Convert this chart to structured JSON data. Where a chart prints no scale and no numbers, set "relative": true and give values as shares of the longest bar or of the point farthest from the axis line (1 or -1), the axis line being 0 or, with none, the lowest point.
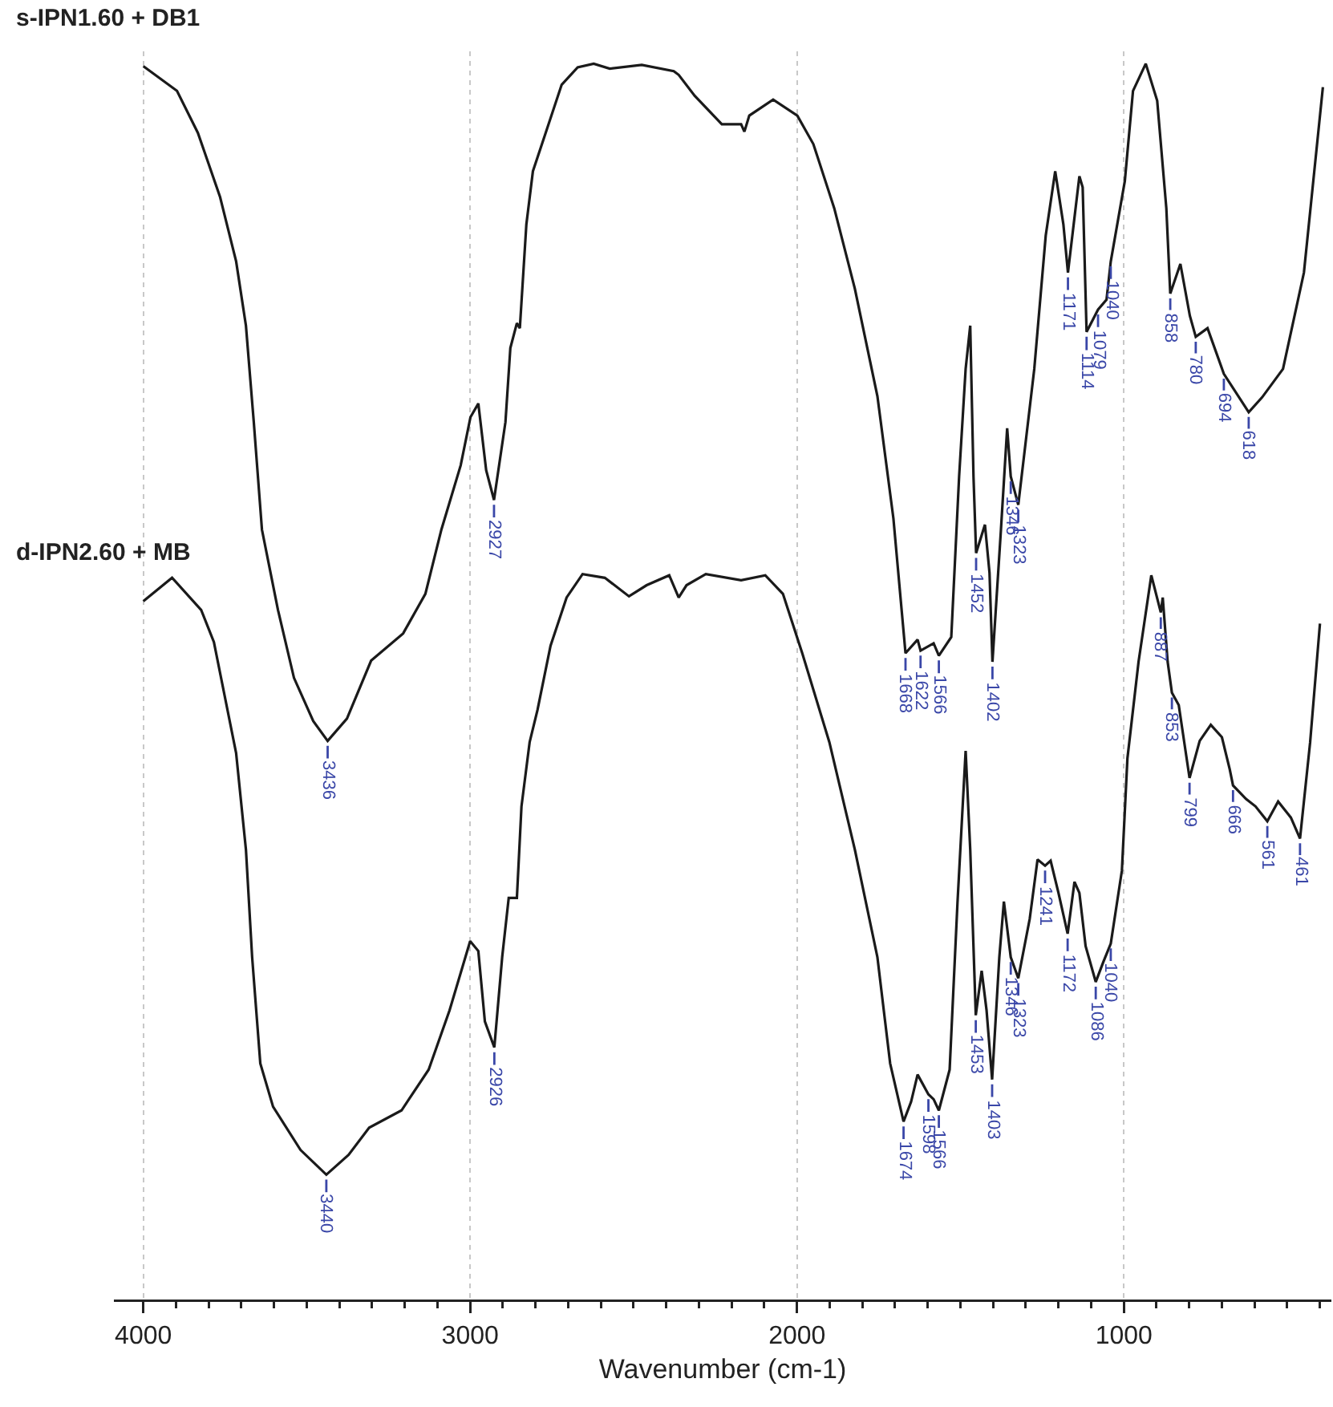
{
  "chart_data": {
    "type": "line",
    "relative": true,
    "xlabel": "Wavenumber (cm-1)",
    "xlim": [
      4090,
      365
    ],
    "xticks": [
      4000,
      {
        "value": 3900,
        "label": null
      },
      {
        "value": 3800,
        "label": null
      },
      {
        "value": 3700,
        "label": null
      },
      {
        "value": 3600,
        "label": null
      },
      {
        "value": 3500,
        "label": null
      },
      {
        "value": 3400,
        "label": null
      },
      {
        "value": 3300,
        "label": null
      },
      {
        "value": 3200,
        "label": null
      },
      {
        "value": 3100,
        "label": null
      },
      3000,
      {
        "value": 2900,
        "label": null
      },
      {
        "value": 2800,
        "label": null
      },
      {
        "value": 2700,
        "label": null
      },
      {
        "value": 2600,
        "label": null
      },
      {
        "value": 2500,
        "label": null
      },
      {
        "value": 2400,
        "label": null
      },
      {
        "value": 2300,
        "label": null
      },
      {
        "value": 2200,
        "label": null
      },
      {
        "value": 2100,
        "label": null
      },
      2000,
      {
        "value": 1900,
        "label": null
      },
      {
        "value": 1800,
        "label": null
      },
      {
        "value": 1700,
        "label": null
      },
      {
        "value": 1600,
        "label": null
      },
      {
        "value": 1500,
        "label": null
      },
      {
        "value": 1400,
        "label": null
      },
      {
        "value": 1300,
        "label": null
      },
      {
        "value": 1200,
        "label": null
      },
      {
        "value": 1100,
        "label": null
      },
      1000,
      {
        "value": 900,
        "label": null
      },
      {
        "value": 800,
        "label": null
      },
      {
        "value": 700,
        "label": null
      },
      {
        "value": 600,
        "label": null
      },
      {
        "value": 500,
        "label": null
      },
      {
        "value": 400,
        "label": null
      }
    ],
    "grid": "x",
    "legend": false,
    "marker": "none",
    "line_style": "solid",
    "tick_labels": "x",
    "series": [
      {
        "name": "s-IPN1.60 + DB1",
        "color": "#1a1a1a",
        "x": [
          4000,
          3897,
          3833,
          3765,
          3716,
          3686,
          3662,
          3637,
          3588,
          3539,
          3480,
          3436,
          3377,
          3303,
          3205,
          3137,
          3088,
          3029,
          2999,
          2975,
          2951,
          2927,
          2892,
          2877,
          2857,
          2848,
          2828,
          2808,
          2769,
          2720,
          2671,
          2622,
          2573,
          2475,
          2377,
          2362,
          2313,
          2230,
          2171,
          2161,
          2146,
          2073,
          1999,
          1950,
          1886,
          1823,
          1754,
          1705,
          1668,
          1631,
          1622,
          1582,
          1566,
          1528,
          1504,
          1484,
          1470,
          1460,
          1452,
          1425,
          1411,
          1402,
          1376,
          1357,
          1346,
          1323,
          1274,
          1239,
          1210,
          1185,
          1171,
          1136,
          1126,
          1114,
          1079,
          1053,
          1040,
          997,
          972,
          933,
          898,
          870,
          858,
          827,
          798,
          780,
          744,
          694,
          618,
          577,
          513,
          449,
          391
        ],
        "values": [
          0.998,
          0.978,
          0.944,
          0.892,
          0.84,
          0.788,
          0.71,
          0.623,
          0.558,
          0.503,
          0.468,
          0.452,
          0.47,
          0.517,
          0.539,
          0.571,
          0.623,
          0.675,
          0.714,
          0.725,
          0.671,
          0.647,
          0.71,
          0.77,
          0.79,
          0.786,
          0.87,
          0.913,
          0.944,
          0.983,
          0.997,
          1.0,
          0.996,
          0.999,
          0.994,
          0.991,
          0.974,
          0.951,
          0.951,
          0.945,
          0.958,
          0.971,
          0.958,
          0.935,
          0.883,
          0.818,
          0.731,
          0.632,
          0.523,
          0.534,
          0.525,
          0.531,
          0.521,
          0.536,
          0.666,
          0.753,
          0.788,
          0.666,
          0.604,
          0.627,
          0.588,
          0.516,
          0.623,
          0.705,
          0.666,
          0.643,
          0.753,
          0.861,
          0.913,
          0.87,
          0.831,
          0.909,
          0.9,
          0.783,
          0.801,
          0.809,
          0.84,
          0.905,
          0.978,
          1.0,
          0.97,
          0.883,
          0.814,
          0.838,
          0.796,
          0.779,
          0.786,
          0.749,
          0.718,
          0.73,
          0.753,
          0.831,
          0.981
        ]
      },
      {
        "name": "d-IPN2.60 + MB",
        "color": "#1a1a1a",
        "x": [
          4000,
          3912,
          3823,
          3784,
          3716,
          3686,
          3667,
          3642,
          3603,
          3519,
          3440,
          3372,
          3309,
          3210,
          3127,
          3063,
          3000,
          2975,
          2955,
          2926,
          2902,
          2882,
          2857,
          2843,
          2818,
          2794,
          2754,
          2705,
          2656,
          2588,
          2514,
          2460,
          2391,
          2362,
          2338,
          2279,
          2171,
          2097,
          2043,
          1984,
          1901,
          1823,
          1754,
          1715,
          1674,
          1651,
          1631,
          1598,
          1582,
          1566,
          1533,
          1509,
          1484,
          1470,
          1453,
          1435,
          1420,
          1403,
          1381,
          1367,
          1346,
          1323,
          1288,
          1264,
          1241,
          1224,
          1200,
          1172,
          1151,
          1136,
          1117,
          1086,
          1063,
          1040,
          1006,
          989,
          955,
          916,
          887,
          881,
          866,
          853,
          832,
          799,
          768,
          734,
          700,
          676,
          666,
          626,
          597,
          561,
          528,
          489,
          461,
          430,
          400
        ],
        "values": [
          0.565,
          0.584,
          0.558,
          0.532,
          0.442,
          0.364,
          0.277,
          0.191,
          0.156,
          0.121,
          0.101,
          0.117,
          0.139,
          0.153,
          0.186,
          0.234,
          0.29,
          0.282,
          0.225,
          0.204,
          0.277,
          0.325,
          0.325,
          0.399,
          0.451,
          0.477,
          0.529,
          0.568,
          0.587,
          0.584,
          0.569,
          0.578,
          0.586,
          0.568,
          0.578,
          0.587,
          0.582,
          0.586,
          0.571,
          0.523,
          0.451,
          0.364,
          0.277,
          0.191,
          0.144,
          0.16,
          0.182,
          0.166,
          0.162,
          0.153,
          0.186,
          0.321,
          0.444,
          0.364,
          0.23,
          0.266,
          0.234,
          0.178,
          0.277,
          0.322,
          0.277,
          0.26,
          0.308,
          0.356,
          0.351,
          0.355,
          0.329,
          0.296,
          0.338,
          0.329,
          0.286,
          0.257,
          0.273,
          0.288,
          0.347,
          0.438,
          0.516,
          0.586,
          0.556,
          0.568,
          0.516,
          0.491,
          0.481,
          0.422,
          0.452,
          0.465,
          0.455,
          0.429,
          0.416,
          0.405,
          0.399,
          0.387,
          0.403,
          0.39,
          0.373,
          0.451,
          0.547
        ]
      }
    ],
    "annotations": [
      {
        "text": "3436",
        "x": 3436,
        "y": 0.452
      },
      {
        "text": "2927",
        "x": 2927,
        "y": 0.647
      },
      {
        "text": "1668",
        "x": 1668,
        "y": 0.523
      },
      {
        "text": "1622",
        "x": 1622,
        "y": 0.525
      },
      {
        "text": "1566",
        "x": 1566,
        "y": 0.521
      },
      {
        "text": "1452",
        "x": 1452,
        "y": 0.604
      },
      {
        "text": "1402",
        "x": 1402,
        "y": 0.516
      },
      {
        "text": "1346",
        "x": 1346,
        "y": 0.666
      },
      {
        "text": "1323",
        "x": 1323,
        "y": 0.643
      },
      {
        "text": "1171",
        "x": 1171,
        "y": 0.831
      },
      {
        "text": "1114",
        "x": 1114,
        "y": 0.783
      },
      {
        "text": "1079",
        "x": 1079,
        "y": 0.801
      },
      {
        "text": "1040",
        "x": 1040,
        "y": 0.84
      },
      {
        "text": "858",
        "x": 858,
        "y": 0.814
      },
      {
        "text": "780",
        "x": 780,
        "y": 0.779
      },
      {
        "text": "694",
        "x": 694,
        "y": 0.749
      },
      {
        "text": "618",
        "x": 618,
        "y": 0.718
      },
      {
        "text": "3440",
        "x": 3440,
        "y": 0.101
      },
      {
        "text": "2926",
        "x": 2926,
        "y": 0.204
      },
      {
        "text": "1674",
        "x": 1674,
        "y": 0.144
      },
      {
        "text": "1598",
        "x": 1598,
        "y": 0.166
      },
      {
        "text": "1566",
        "x": 1566,
        "y": 0.153
      },
      {
        "text": "1453",
        "x": 1453,
        "y": 0.23
      },
      {
        "text": "1403",
        "x": 1403,
        "y": 0.178
      },
      {
        "text": "1346",
        "x": 1346,
        "y": 0.277
      },
      {
        "text": "1323",
        "x": 1323,
        "y": 0.26
      },
      {
        "text": "1241",
        "x": 1241,
        "y": 0.351
      },
      {
        "text": "1172",
        "x": 1172,
        "y": 0.296
      },
      {
        "text": "1086",
        "x": 1086,
        "y": 0.257
      },
      {
        "text": "1040",
        "x": 1040,
        "y": 0.288
      },
      {
        "text": "887",
        "x": 887,
        "y": 0.556
      },
      {
        "text": "853",
        "x": 853,
        "y": 0.491
      },
      {
        "text": "799",
        "x": 799,
        "y": 0.422
      },
      {
        "text": "666",
        "x": 666,
        "y": 0.416
      },
      {
        "text": "561",
        "x": 561,
        "y": 0.387
      },
      {
        "text": "461",
        "x": 461,
        "y": 0.373
      }
    ]
  }
}
